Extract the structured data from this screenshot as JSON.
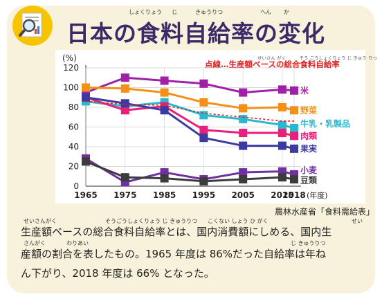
{
  "header": {
    "title": "日本の食料自給率の変化",
    "title_ruby": [
      "しょくりょう",
      "じ",
      "きゅうりつ",
      "へん",
      "か"
    ]
  },
  "chart_data": {
    "type": "line",
    "ylabel": "(%)",
    "xlabel": "(年度)",
    "x": [
      1965,
      1975,
      1985,
      1995,
      2005,
      2015,
      2018
    ],
    "x_tick_labels": [
      "1965",
      "1975",
      "1985",
      "1995",
      "2005",
      "2015",
      "2018"
    ],
    "ylim": [
      0,
      120
    ],
    "y_ticks": [
      "0",
      "20",
      "40",
      "60",
      "80",
      "100",
      "120"
    ],
    "grid": true,
    "legend_note": "点線…生産額ベースの総合食料自給率",
    "legend_note_ruby": [
      "せいさん",
      "がく",
      "そう",
      "ごう",
      "しょくりょう",
      "じ",
      "きゅう",
      "りつ"
    ],
    "series": [
      {
        "name": "米",
        "color": "#a020a8",
        "values": [
          95,
          110,
          107,
          104,
          95,
          98,
          97
        ]
      },
      {
        "name": "野菜",
        "color": "#f39018",
        "values": [
          100,
          99,
          95,
          85,
          79,
          80,
          77
        ]
      },
      {
        "name": "牛乳・乳製品",
        "color": "#2ab8d0",
        "values": [
          86,
          81,
          85,
          72,
          68,
          62,
          59
        ]
      },
      {
        "name": "肉類",
        "color": "#e8207a",
        "values": [
          90,
          77,
          81,
          57,
          54,
          54,
          51
        ]
      },
      {
        "name": "果実",
        "color": "#3a3aa0",
        "values": [
          90,
          84,
          77,
          49,
          41,
          41,
          38
        ]
      },
      {
        "name": "小麦",
        "color": "#7030a0",
        "values": [
          28,
          4,
          14,
          7,
          14,
          15,
          12
        ]
      },
      {
        "name": "豆類",
        "color": "#3c3c3c",
        "values": [
          25,
          9,
          8,
          5,
          7,
          9,
          7
        ]
      }
    ],
    "dotted_series": {
      "color": "#e02020",
      "values": [
        86,
        83,
        82,
        74,
        70,
        66,
        66
      ]
    },
    "series_label_ruby": {
      "牛乳・乳製品": [
        "ぎゅうにゅう",
        "にゅうせいひん"
      ],
      "肉類": [
        "にく",
        "るい"
      ],
      "果実": [
        "か",
        "じつ"
      ],
      "小麦": [
        "こ",
        "むぎ"
      ],
      "豆類": [
        "まめ",
        "るい"
      ],
      "野菜": [
        "や",
        "さい"
      ],
      "米": [
        "こめ"
      ]
    }
  },
  "source": "農林水産省「食料需給表」",
  "description": {
    "line1": "生産額ベースの総合食料自給率とは、国内消費額にしめる、国内生",
    "line2": "産額の割合を表したもの。1965 年度は 86%だった自給率は年ね",
    "line3": "ん下がり、2018 年度は 66% となった。",
    "ruby1": [
      "せいさんがく",
      "そうごうしょくりょう じ きゅうりつ",
      "こくない しょう ひ がく",
      "せい"
    ],
    "ruby2": [
      "さんがく",
      "わりあい",
      "じ きゅうりつ"
    ]
  },
  "colors": {
    "background": "#f8f2dc",
    "title": "#3a2a6a",
    "grid": "#cfcfcf",
    "axis": "#555555"
  },
  "icons": [
    "magnifier-document-icon"
  ]
}
